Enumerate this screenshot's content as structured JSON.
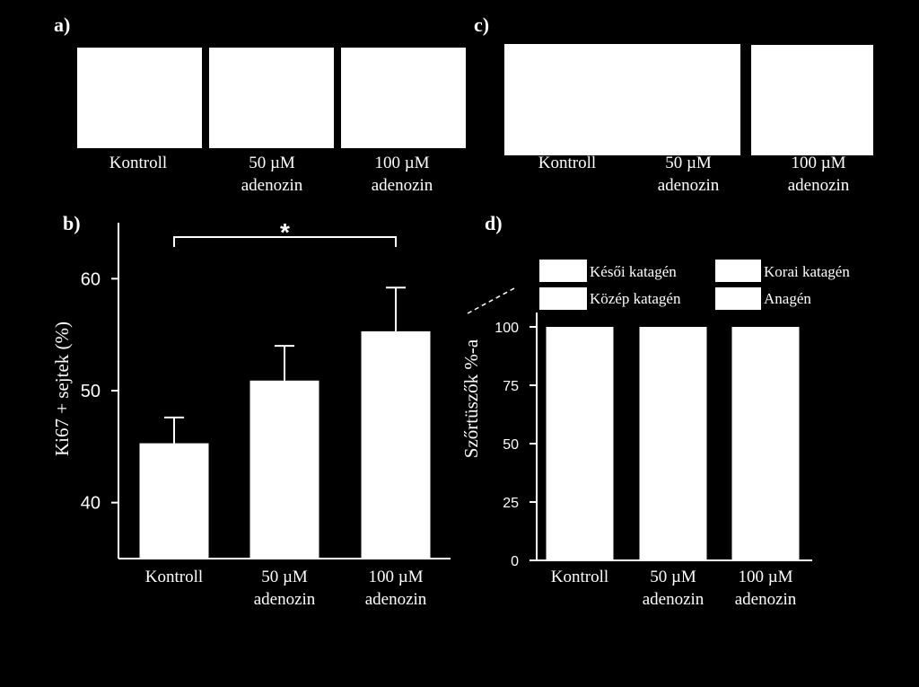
{
  "colors": {
    "background": "#000000",
    "foreground": "#ffffff"
  },
  "panels": {
    "a": {
      "label": "a)",
      "captions": [
        {
          "line1": "Kontroll",
          "line2": ""
        },
        {
          "line1": "50 µM",
          "line2": "adenozin"
        },
        {
          "line1": "100 µM",
          "line2": "adenozin"
        }
      ]
    },
    "c": {
      "label": "c)",
      "captions": [
        {
          "line1": "Kontroll",
          "line2": ""
        },
        {
          "line1": "50 µM",
          "line2": "adenozin"
        },
        {
          "line1": "100 µM",
          "line2": "adenozin"
        }
      ]
    },
    "b": {
      "label": "b)"
    },
    "d": {
      "label": "d)"
    }
  },
  "chart_data": [
    {
      "panel": "b",
      "type": "bar",
      "categories": [
        {
          "line1": "Kontroll",
          "line2": ""
        },
        {
          "line1": "50 µM",
          "line2": "adenozin"
        },
        {
          "line1": "100 µM",
          "line2": "adenozin"
        }
      ],
      "values": [
        45.3,
        50.9,
        55.3
      ],
      "errors": [
        2.3,
        3.1,
        3.9
      ],
      "ylabel": "Ki67 + sejtek (%)",
      "xlabel": "",
      "ylim": [
        35,
        65
      ],
      "yticks": [
        40,
        50,
        60
      ],
      "significance": {
        "from": 0,
        "to": 2,
        "label": "*"
      }
    },
    {
      "panel": "d",
      "type": "bar",
      "stacked": true,
      "categories": [
        {
          "line1": "Kontroll",
          "line2": ""
        },
        {
          "line1": "50 µM",
          "line2": "adenozin"
        },
        {
          "line1": "100 µM",
          "line2": "adenozin"
        }
      ],
      "totals": [
        100,
        100,
        100
      ],
      "ylabel": "Szőrtüszők %-a",
      "xlabel": "",
      "ylim": [
        0,
        110
      ],
      "yticks": [
        0,
        25,
        50,
        75,
        100
      ],
      "legend": [
        "Késői katagén",
        "Korai katagén",
        "Közép katagén",
        "Anagén"
      ]
    }
  ]
}
